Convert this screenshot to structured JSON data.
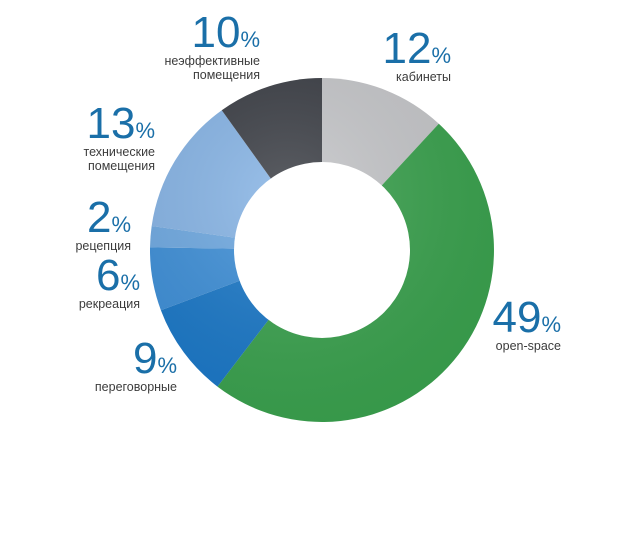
{
  "chart_data": {
    "type": "pie",
    "donut": true,
    "unit": "%",
    "slices": [
      {
        "label": "кабинеты",
        "label_lines": [
          "кабинеты"
        ],
        "value": 12,
        "color": "#c6c7ca"
      },
      {
        "label": "open-space",
        "label_lines": [
          "open-space"
        ],
        "value": 49,
        "color": "#3aa24e"
      },
      {
        "label": "переговорные",
        "label_lines": [
          "переговорные"
        ],
        "value": 9,
        "color": "#1a78c8"
      },
      {
        "label": "рекреация",
        "label_lines": [
          "рекреация"
        ],
        "value": 6,
        "color": "#3d8fd8"
      },
      {
        "label": "рецепция",
        "label_lines": [
          "рецепция"
        ],
        "value": 2,
        "color": "#6ea9e2"
      },
      {
        "label": "технические помещения",
        "label_lines": [
          "технические",
          "помещения"
        ],
        "value": 13,
        "color": "#86b4e6"
      },
      {
        "label": "неэффективные помещения",
        "label_lines": [
          "неэффективные",
          "помещения"
        ],
        "value": 10,
        "color": "#3a3d44"
      }
    ]
  }
}
